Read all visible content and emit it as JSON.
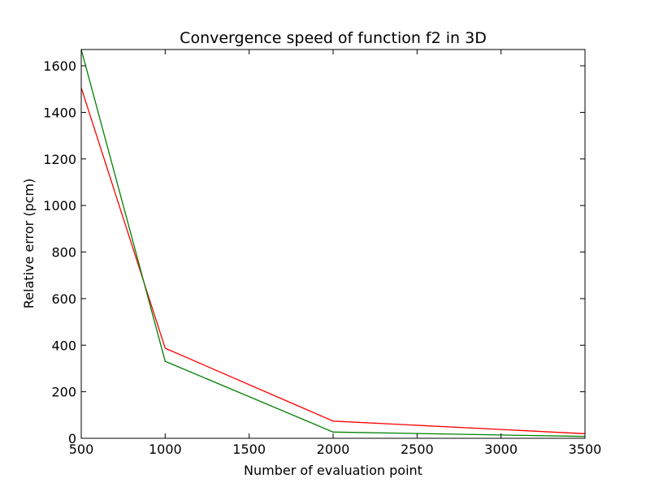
{
  "chart_data": {
    "type": "line",
    "title": "Convergence speed of function f2 in 3D",
    "xlabel": "Number of evaluation point",
    "ylabel": "Relative error (pcm)",
    "xlim": [
      500,
      3500
    ],
    "ylim": [
      0,
      1670
    ],
    "xticks": [
      500,
      1000,
      1500,
      2000,
      2500,
      3000,
      3500
    ],
    "yticks": [
      0,
      200,
      400,
      600,
      800,
      1000,
      1200,
      1400,
      1600
    ],
    "grid": false,
    "x": [
      500,
      1000,
      2000,
      3500
    ],
    "series": [
      {
        "color": "#ff0000",
        "values": [
          1505,
          387,
          74,
          20
        ]
      },
      {
        "color": "#008000",
        "values": [
          1670,
          331,
          27,
          8
        ]
      }
    ]
  }
}
